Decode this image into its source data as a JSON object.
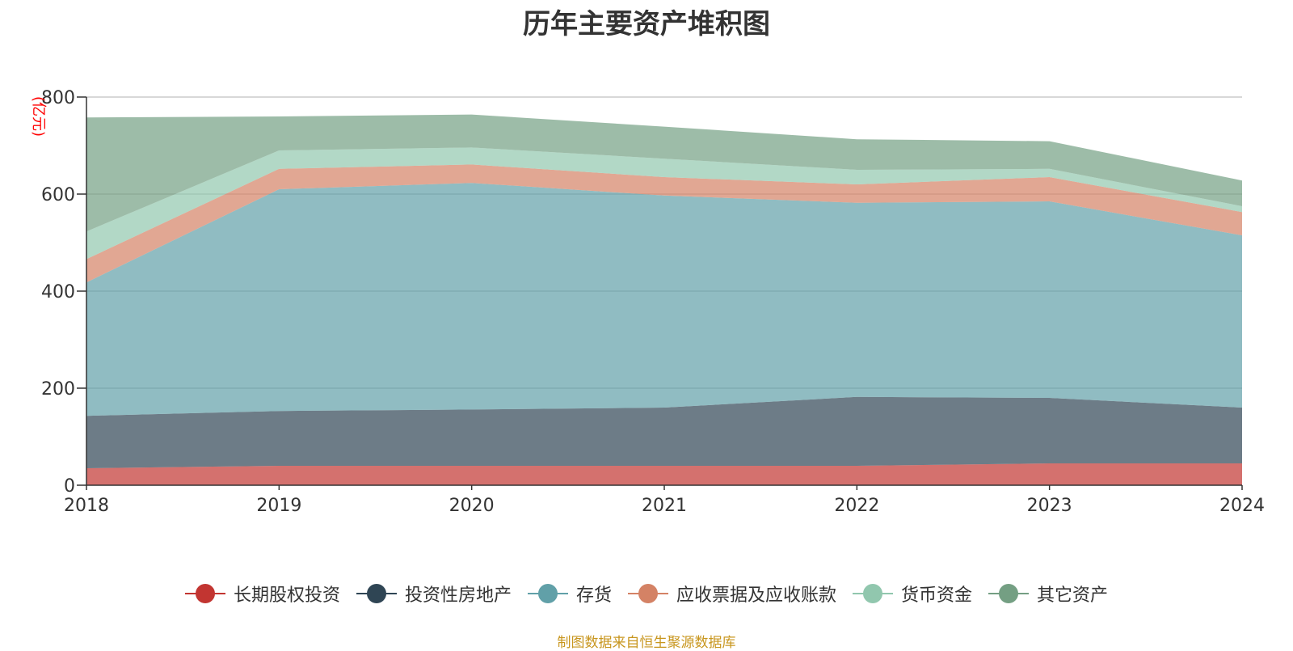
{
  "chart_data": {
    "type": "area",
    "title": "历年主要资产堆积图",
    "ylabel": "(亿元)",
    "xlabel": "",
    "x": [
      "2018",
      "2019",
      "2020",
      "2021",
      "2022",
      "2023",
      "2024"
    ],
    "ylim": [
      0,
      800
    ],
    "yticks": [
      0,
      200,
      400,
      600,
      800
    ],
    "stacked": true,
    "grid": true,
    "legend_position": "bottom",
    "series": [
      {
        "name": "长期股权投资",
        "color": "#c23531",
        "values": [
          35,
          40,
          40,
          40,
          40,
          45,
          45
        ]
      },
      {
        "name": "投资性房地产",
        "color": "#2f4554",
        "values": [
          108,
          113,
          116,
          120,
          142,
          135,
          115
        ]
      },
      {
        "name": "存货",
        "color": "#61a0a8",
        "values": [
          275,
          457,
          467,
          437,
          400,
          405,
          355
        ]
      },
      {
        "name": "应收票据及应收账款",
        "color": "#d48265",
        "values": [
          48,
          42,
          38,
          38,
          38,
          50,
          48
        ]
      },
      {
        "name": "货币资金",
        "color": "#91c7ae",
        "values": [
          57,
          38,
          35,
          38,
          30,
          17,
          12
        ]
      },
      {
        "name": "其它资产",
        "color": "#749f83",
        "values": [
          235,
          70,
          68,
          66,
          63,
          57,
          53
        ]
      }
    ]
  },
  "source_note": "制图数据来自恒生聚源数据库"
}
